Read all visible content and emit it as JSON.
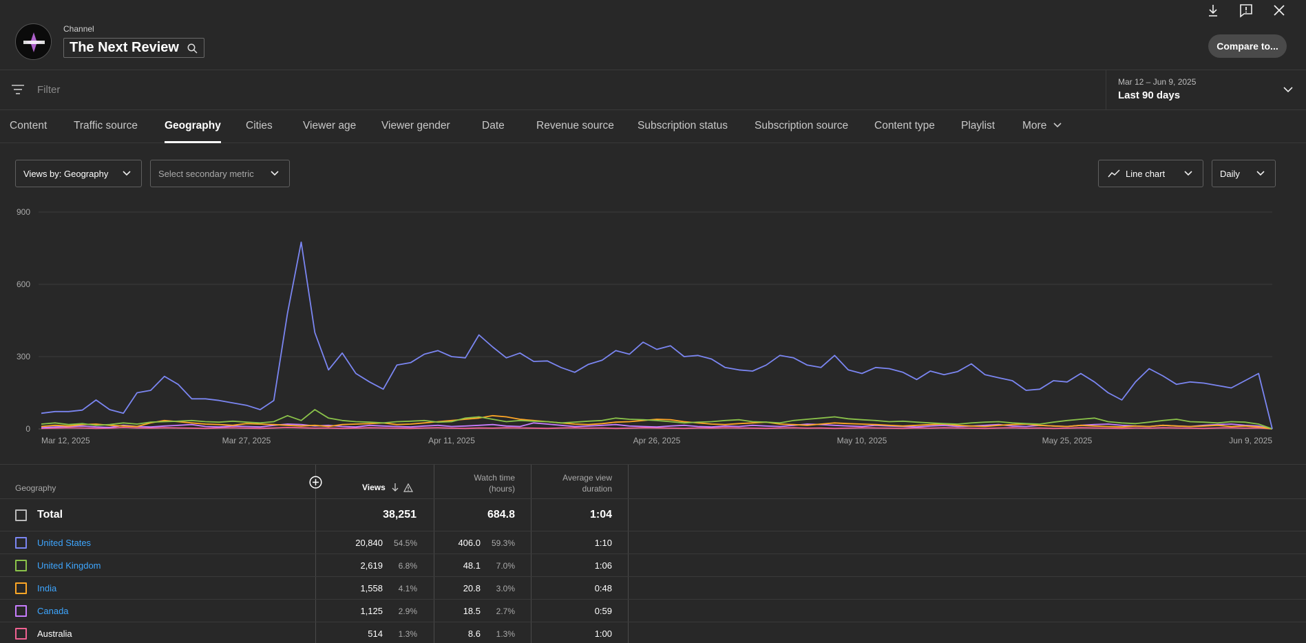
{
  "header": {
    "channel_label": "Channel",
    "channel_name": "The Next Review",
    "compare_label": "Compare to..."
  },
  "filter": {
    "placeholder": "Filter"
  },
  "date": {
    "range": "Mar 12 – Jun 9, 2025",
    "label": "Last 90 days"
  },
  "tabs": [
    "Content",
    "Traffic source",
    "Geography",
    "Cities",
    "Viewer age",
    "Viewer gender",
    "Date",
    "Revenue source",
    "Subscription status",
    "Subscription source",
    "Content type",
    "Playlist",
    "More"
  ],
  "active_tab": "Geography",
  "controls": {
    "primary_metric": "Views by: Geography",
    "secondary_metric": "Select secondary metric",
    "chart_type": "Line chart",
    "interval": "Daily"
  },
  "chart_data": {
    "type": "line",
    "ylim": [
      0,
      900
    ],
    "yticks": [
      0,
      300,
      600,
      900
    ],
    "xticks": [
      "Mar 12, 2025",
      "Mar 27, 2025",
      "Apr 11, 2025",
      "Apr 26, 2025",
      "May 10, 2025",
      "May 25, 2025",
      "Jun 9, 2025"
    ],
    "x_start": "Mar 12, 2025",
    "x_end": "Jun 9, 2025",
    "grid": true,
    "series": [
      {
        "name": "United States",
        "color": "#7b86f2",
        "values": [
          65,
          72,
          72,
          78,
          120,
          80,
          65,
          150,
          160,
          218,
          185,
          125,
          125,
          118,
          108,
          98,
          80,
          118,
          480,
          775,
          400,
          245,
          315,
          230,
          195,
          165,
          265,
          275,
          310,
          325,
          300,
          295,
          390,
          340,
          295,
          315,
          280,
          282,
          255,
          235,
          268,
          285,
          325,
          310,
          360,
          330,
          345,
          300,
          305,
          290,
          255,
          245,
          240,
          265,
          305,
          295,
          265,
          255,
          305,
          245,
          230,
          255,
          250,
          235,
          205,
          240,
          225,
          238,
          270,
          225,
          212,
          200,
          160,
          165,
          200,
          195,
          230,
          195,
          150,
          120,
          195,
          250,
          220,
          185,
          195,
          190,
          180,
          170,
          200,
          230,
          0
        ]
      },
      {
        "name": "United Kingdom",
        "color": "#8bc34a",
        "values": [
          20,
          25,
          18,
          22,
          15,
          18,
          25,
          20,
          28,
          30,
          32,
          35,
          30,
          28,
          32,
          28,
          25,
          30,
          55,
          35,
          80,
          45,
          35,
          30,
          28,
          25,
          30,
          32,
          35,
          28,
          30,
          45,
          50,
          40,
          30,
          35,
          32,
          30,
          25,
          28,
          32,
          35,
          45,
          40,
          38,
          35,
          30,
          25,
          28,
          30,
          35,
          38,
          30,
          28,
          25,
          35,
          40,
          45,
          50,
          42,
          38,
          35,
          30,
          32,
          28,
          25,
          22,
          20,
          25,
          28,
          30,
          25,
          22,
          20,
          28,
          35,
          40,
          45,
          30,
          25,
          22,
          28,
          35,
          40,
          30,
          28,
          25,
          30,
          28,
          20,
          0
        ]
      },
      {
        "name": "India",
        "color": "#ffa726",
        "values": [
          10,
          15,
          12,
          18,
          20,
          15,
          12,
          10,
          25,
          35,
          30,
          25,
          20,
          18,
          15,
          22,
          20,
          18,
          15,
          12,
          15,
          10,
          18,
          20,
          22,
          25,
          18,
          20,
          25,
          30,
          35,
          40,
          45,
          55,
          50,
          40,
          35,
          30,
          25,
          20,
          18,
          22,
          28,
          30,
          35,
          40,
          38,
          30,
          25,
          20,
          18,
          22,
          25,
          28,
          20,
          18,
          15,
          20,
          25,
          22,
          20,
          18,
          15,
          12,
          15,
          18,
          20,
          15,
          12,
          10,
          15,
          18,
          20,
          15,
          12,
          10,
          15,
          12,
          10,
          8,
          12,
          10,
          15,
          12,
          10,
          12,
          15,
          10,
          12,
          8,
          0
        ]
      },
      {
        "name": "Canada",
        "color": "#c77dff",
        "values": [
          5,
          8,
          10,
          12,
          8,
          6,
          15,
          10,
          8,
          12,
          15,
          18,
          10,
          8,
          12,
          10,
          8,
          15,
          20,
          18,
          12,
          15,
          10,
          8,
          15,
          12,
          10,
          8,
          12,
          15,
          10,
          12,
          15,
          18,
          12,
          10,
          25,
          20,
          15,
          10,
          12,
          15,
          18,
          12,
          10,
          8,
          12,
          15,
          10,
          8,
          12,
          10,
          15,
          12,
          10,
          15,
          20,
          18,
          15,
          12,
          10,
          15,
          12,
          10,
          8,
          12,
          15,
          10,
          12,
          15,
          18,
          12,
          10,
          15,
          12,
          10,
          15,
          18,
          20,
          15,
          12,
          10,
          15,
          12,
          10,
          15,
          18,
          20,
          15,
          12,
          0
        ]
      },
      {
        "name": "Australia",
        "color": "#f06292",
        "values": [
          2,
          3,
          5,
          4,
          2,
          3,
          6,
          4,
          3,
          5,
          4,
          3,
          2,
          4,
          5,
          3,
          2,
          4,
          6,
          5,
          3,
          4,
          2,
          3,
          5,
          4,
          3,
          2,
          4,
          5,
          3,
          2,
          4,
          3,
          5,
          4,
          3,
          2,
          4,
          5,
          3,
          4,
          2,
          3,
          5,
          4,
          3,
          2,
          4,
          3,
          5,
          4,
          3,
          2,
          4,
          5,
          3,
          4,
          2,
          3,
          5,
          4,
          3,
          2,
          4,
          3,
          5,
          4,
          3,
          2,
          4,
          5,
          3,
          4,
          2,
          3,
          5,
          4,
          3,
          2,
          4,
          3,
          5,
          4,
          3,
          2,
          4,
          5,
          3,
          4,
          0
        ]
      }
    ]
  },
  "table": {
    "headers": {
      "geography": "Geography",
      "views": "Views",
      "watch_time_1": "Watch time",
      "watch_time_2": "(hours)",
      "avg_1": "Average view",
      "avg_2": "duration"
    },
    "total": {
      "label": "Total",
      "views": "38,251",
      "watch": "684.8",
      "avg": "1:04"
    },
    "rows": [
      {
        "geo": "United States",
        "views": "20,840",
        "views_pct": "54.5%",
        "watch": "406.0",
        "watch_pct": "59.3%",
        "avg": "1:10",
        "color": "#7b86f2",
        "link": true
      },
      {
        "geo": "United Kingdom",
        "views": "2,619",
        "views_pct": "6.8%",
        "watch": "48.1",
        "watch_pct": "7.0%",
        "avg": "1:06",
        "color": "#8bc34a",
        "link": true
      },
      {
        "geo": "India",
        "views": "1,558",
        "views_pct": "4.1%",
        "watch": "20.8",
        "watch_pct": "3.0%",
        "avg": "0:48",
        "color": "#ffa726",
        "link": true
      },
      {
        "geo": "Canada",
        "views": "1,125",
        "views_pct": "2.9%",
        "watch": "18.5",
        "watch_pct": "2.7%",
        "avg": "0:59",
        "color": "#c77dff",
        "link": true
      },
      {
        "geo": "Australia",
        "views": "514",
        "views_pct": "1.3%",
        "watch": "8.6",
        "watch_pct": "1.3%",
        "avg": "1:00",
        "color": "#f06292",
        "link": false
      }
    ]
  }
}
